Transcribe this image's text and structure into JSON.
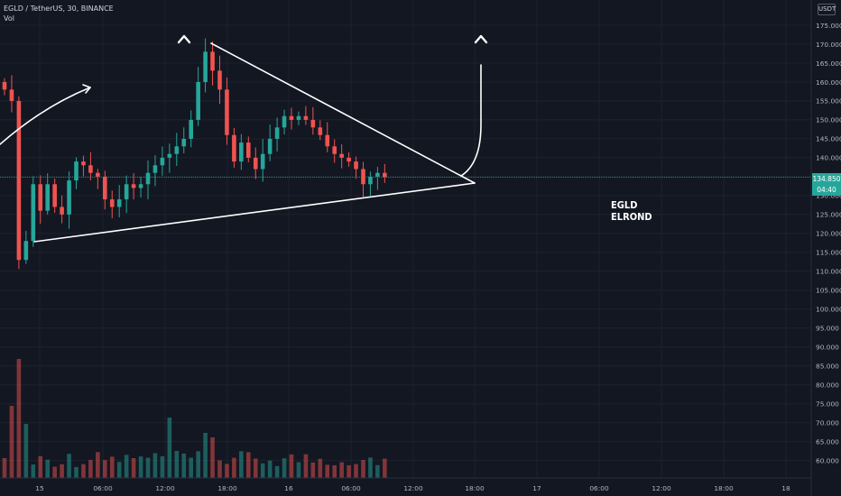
{
  "header": {
    "symbol_line": "EGLD / TetherUS, 30, BINANCE",
    "volume_label": "Vol"
  },
  "price_axis": {
    "unit_label": "USDT",
    "ticks": [
      "175.000",
      "170.000",
      "165.000",
      "160.000",
      "155.000",
      "150.000",
      "145.000",
      "140.000",
      "135.000",
      "130.000",
      "125.000",
      "120.000",
      "115.000",
      "110.000",
      "105.000",
      "100.000",
      "95.000",
      "90.000",
      "85.000",
      "80.000",
      "75.000",
      "70.000",
      "65.000",
      "60.000"
    ],
    "last_price": "134.850",
    "countdown": "04:40"
  },
  "time_axis": {
    "ticks": [
      "15",
      "06:00",
      "12:00",
      "18:00",
      "16",
      "06:00",
      "12:00",
      "18:00",
      "17",
      "06:00",
      "12:00",
      "18:00",
      "18"
    ]
  },
  "annotation": {
    "line1": "EGLD",
    "line2": "ELROND"
  },
  "colors": {
    "background": "#131722",
    "up": "#26a69a",
    "down": "#ef5350",
    "drawing": "#ffffff"
  },
  "chart_data": {
    "type": "candlestick",
    "symbol": "EGLD / TetherUS",
    "interval": "30",
    "exchange": "BINANCE",
    "y_range": [
      57,
      178
    ],
    "x_ticks": [
      "15",
      "06:00",
      "12:00",
      "18:00",
      "16",
      "06:00",
      "12:00",
      "18:00",
      "17",
      "06:00",
      "12:00",
      "18:00",
      "18"
    ],
    "last_price": 134.85,
    "close_path": [
      {
        "bar": 0,
        "close": 158
      },
      {
        "bar": 1,
        "close": 155
      },
      {
        "bar": 2,
        "close": 113
      },
      {
        "bar": 3,
        "close": 118
      },
      {
        "bar": 4,
        "close": 133
      },
      {
        "bar": 5,
        "close": 126
      },
      {
        "bar": 6,
        "close": 133
      },
      {
        "bar": 7,
        "close": 127
      },
      {
        "bar": 8,
        "close": 125
      },
      {
        "bar": 9,
        "close": 134
      },
      {
        "bar": 10,
        "close": 139
      },
      {
        "bar": 11,
        "close": 138
      },
      {
        "bar": 12,
        "close": 136
      },
      {
        "bar": 13,
        "close": 135
      },
      {
        "bar": 14,
        "close": 129
      },
      {
        "bar": 15,
        "close": 127
      },
      {
        "bar": 16,
        "close": 129
      },
      {
        "bar": 17,
        "close": 133
      },
      {
        "bar": 18,
        "close": 132
      },
      {
        "bar": 19,
        "close": 133
      },
      {
        "bar": 20,
        "close": 136
      },
      {
        "bar": 21,
        "close": 138
      },
      {
        "bar": 22,
        "close": 140
      },
      {
        "bar": 23,
        "close": 141
      },
      {
        "bar": 24,
        "close": 143
      },
      {
        "bar": 25,
        "close": 145
      },
      {
        "bar": 26,
        "close": 150
      },
      {
        "bar": 27,
        "close": 160
      },
      {
        "bar": 28,
        "close": 168
      },
      {
        "bar": 29,
        "close": 163
      },
      {
        "bar": 30,
        "close": 158
      },
      {
        "bar": 31,
        "close": 146
      },
      {
        "bar": 32,
        "close": 139
      },
      {
        "bar": 33,
        "close": 144
      },
      {
        "bar": 34,
        "close": 140
      },
      {
        "bar": 35,
        "close": 137
      },
      {
        "bar": 36,
        "close": 141
      },
      {
        "bar": 37,
        "close": 145
      },
      {
        "bar": 38,
        "close": 148
      },
      {
        "bar": 39,
        "close": 151
      },
      {
        "bar": 40,
        "close": 150
      },
      {
        "bar": 41,
        "close": 151
      },
      {
        "bar": 42,
        "close": 150
      },
      {
        "bar": 43,
        "close": 148
      },
      {
        "bar": 44,
        "close": 146
      },
      {
        "bar": 45,
        "close": 143
      },
      {
        "bar": 46,
        "close": 141
      },
      {
        "bar": 47,
        "close": 140
      },
      {
        "bar": 48,
        "close": 139
      },
      {
        "bar": 49,
        "close": 137
      },
      {
        "bar": 50,
        "close": 133
      },
      {
        "bar": 51,
        "close": 135
      },
      {
        "bar": 52,
        "close": 136
      },
      {
        "bar": 53,
        "close": 134.85
      }
    ],
    "drawings": [
      {
        "type": "trendline",
        "name": "triangle-upper",
        "points": [
          {
            "bar": 28.5,
            "price": 172
          },
          {
            "bar": 66,
            "price": 133
          }
        ]
      },
      {
        "type": "trendline",
        "name": "triangle-lower",
        "points": [
          {
            "bar": 3,
            "price": 118
          },
          {
            "bar": 66,
            "price": 133
          }
        ]
      }
    ]
  }
}
